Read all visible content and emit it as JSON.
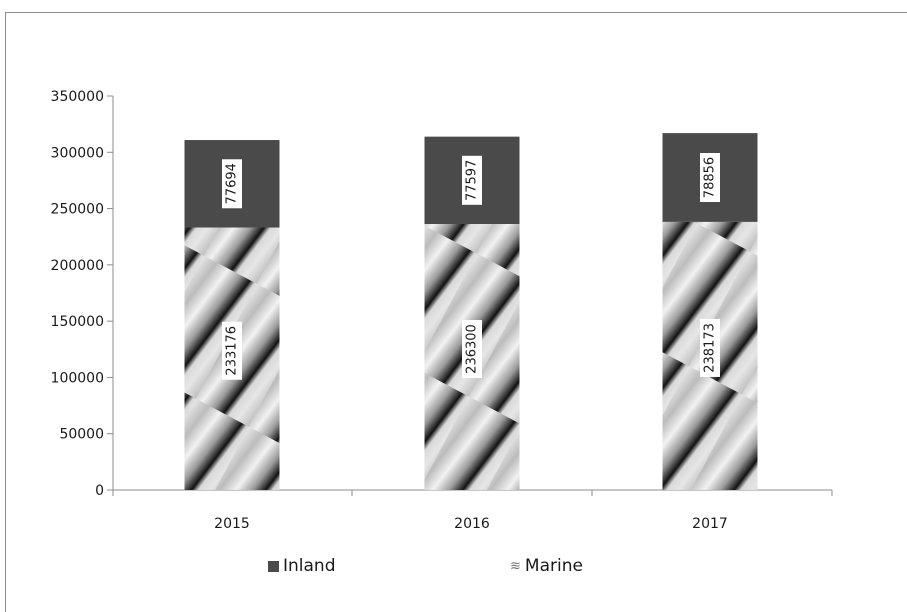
{
  "chart_data": {
    "type": "bar",
    "stacked": true,
    "categories": [
      "2015",
      "2016",
      "2017"
    ],
    "series": [
      {
        "name": "Marine",
        "values": [
          233176,
          236300,
          238173
        ],
        "color": "#bdbdbd"
      },
      {
        "name": "Inland",
        "values": [
          77694,
          77597,
          78856
        ],
        "color": "#4a4a4a"
      }
    ],
    "y_ticks": [
      "0",
      "50000",
      "100000",
      "150000",
      "200000",
      "250000",
      "300000",
      "350000"
    ],
    "ylim": [
      0,
      350000
    ],
    "legend_position": "bottom",
    "grid": false
  },
  "legend": {
    "inland_label": "Inland",
    "marine_label": "Marine",
    "marine_marker": "≋"
  }
}
